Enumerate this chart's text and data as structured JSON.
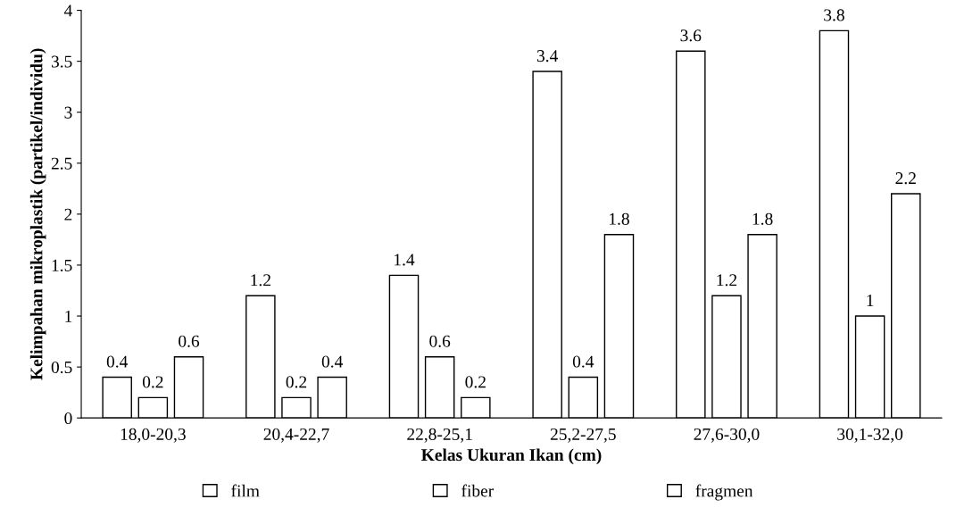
{
  "chart_data": {
    "type": "bar",
    "xlabel": "Kelas Ukuran Ikan (cm)",
    "ylabel": "Kelimpahan mikroplastik (partikel/individu)",
    "categories": [
      "18,0-20,3",
      "20,4-22,7",
      "22,8-25,1",
      "25,2-27,5",
      "27,6-30,0",
      "30,1-32,0"
    ],
    "series": [
      {
        "name": "film",
        "color": "#ffffff",
        "values": [
          0.4,
          1.2,
          1.4,
          3.4,
          3.6,
          3.8
        ]
      },
      {
        "name": "fiber",
        "color": "#ffffff",
        "values": [
          0.2,
          0.2,
          0.6,
          0.4,
          1.2,
          1
        ]
      },
      {
        "name": "fragmen",
        "color": "#ffffff",
        "values": [
          0.6,
          0.4,
          0.2,
          1.8,
          1.8,
          2.2
        ]
      }
    ],
    "ylim": [
      0,
      4
    ],
    "yticks": [
      0,
      0.5,
      1,
      1.5,
      2,
      2.5,
      3,
      3.5,
      4
    ],
    "grid": false,
    "legend": "bottom",
    "data_labels": true
  }
}
